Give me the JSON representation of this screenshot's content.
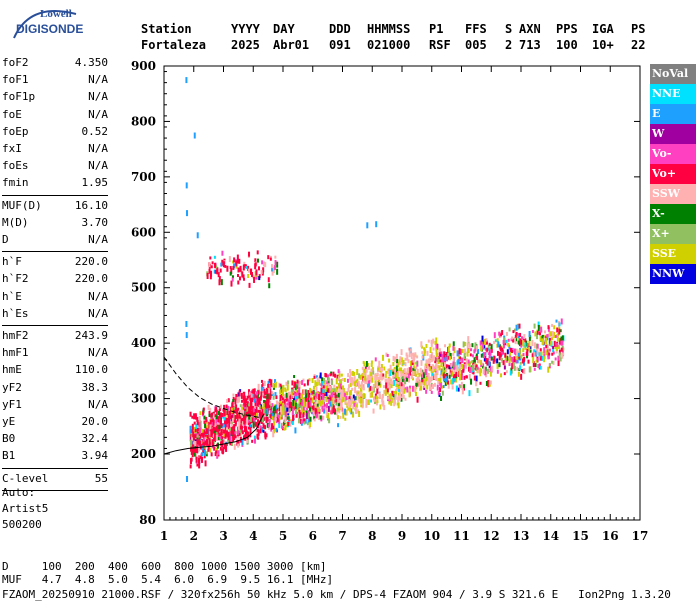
{
  "logo": {
    "line1": "Lowell",
    "line2": "DIGISONDE"
  },
  "header": {
    "labels": [
      "Station",
      "YYYY",
      "DAY",
      "DDD",
      "HHMMSS",
      "P1",
      "FFS",
      "S",
      "AXN",
      "PPS",
      "IGA",
      "PS"
    ],
    "values": [
      "Fortaleza",
      "2025",
      "Abr01",
      "091",
      "021000",
      "RSF",
      "005",
      "2",
      "713",
      "100",
      "10+",
      "22"
    ]
  },
  "params_groups": [
    [
      [
        "foF2",
        "4.350"
      ],
      [
        "foF1",
        "N/A"
      ],
      [
        "foF1p",
        "N/A"
      ],
      [
        "foE",
        "N/A"
      ],
      [
        "foEp",
        "0.52"
      ],
      [
        "fxI",
        "N/A"
      ],
      [
        "foEs",
        "N/A"
      ],
      [
        "fmin",
        "1.95"
      ]
    ],
    [
      [
        "MUF(D)",
        "16.10"
      ],
      [
        "M(D)",
        "3.70"
      ],
      [
        "D",
        "N/A"
      ]
    ],
    [
      [
        "h`F",
        "220.0"
      ],
      [
        "h`F2",
        "220.0"
      ],
      [
        "h`E",
        "N/A"
      ],
      [
        "h`Es",
        "N/A"
      ]
    ],
    [
      [
        "hmF2",
        "243.9"
      ],
      [
        "hmF1",
        "N/A"
      ],
      [
        "hmE",
        "110.0"
      ],
      [
        "yF2",
        "38.3"
      ],
      [
        "yF1",
        "N/A"
      ],
      [
        "yE",
        "20.0"
      ],
      [
        "B0",
        "32.4"
      ],
      [
        "B1",
        "3.94"
      ]
    ],
    [
      [
        "C-level",
        "55"
      ]
    ]
  ],
  "auto": {
    "line1": "Auto:",
    "line2": "Artist5",
    "line3": "500200"
  },
  "legend": [
    {
      "label": "NoVal",
      "color": "#808080"
    },
    {
      "label": "NNE",
      "color": "#00e0ff"
    },
    {
      "label": "E",
      "color": "#1ea0ff"
    },
    {
      "label": "W",
      "color": "#a000a0"
    },
    {
      "label": "Vo-",
      "color": "#ff40c0"
    },
    {
      "label": "Vo+",
      "color": "#ff0040"
    },
    {
      "label": "SSW",
      "color": "#ffb0b0"
    },
    {
      "label": "X-",
      "color": "#008000"
    },
    {
      "label": "X+",
      "color": "#90c060"
    },
    {
      "label": "SSE",
      "color": "#d0d000"
    },
    {
      "label": "NNW",
      "color": "#0000e0"
    }
  ],
  "footer": {
    "d_row": "D     100  200  400  600  800 1000 1500 3000 [km]",
    "muf_row": "MUF   4.7  4.8  5.0  5.4  6.0  6.9  9.5 16.1 [MHz]",
    "file_row": "FZAOM_20250910 21000.RSF / 320fx256h 50 kHz 5.0 km / DPS-4 FZAOM 904 / 3.9 S 321.6 E   Ion2Png 1.3.20"
  },
  "chart_data": {
    "type": "scatter",
    "xlim": [
      1,
      17
    ],
    "ylim": [
      80,
      900
    ],
    "x_ticks": [
      1,
      2,
      3,
      4,
      5,
      6,
      7,
      8,
      9,
      10,
      11,
      12,
      13,
      14,
      15,
      16,
      17
    ],
    "y_ticks": [
      80,
      200,
      300,
      400,
      500,
      600,
      700,
      800,
      900
    ],
    "grid": false,
    "legend_position": "right",
    "trace_clusters": [
      {
        "x0": 1.85,
        "x1": 4.6,
        "hbase": 225,
        "hslope": 25,
        "spread": 55,
        "density": 900
      },
      {
        "x0": 4.6,
        "x1": 6.8,
        "hbase": 285,
        "hslope": 12,
        "spread": 50,
        "density": 550
      },
      {
        "x0": 6.8,
        "x1": 10.2,
        "hbase": 305,
        "hslope": 18,
        "spread": 55,
        "density": 650
      },
      {
        "x0": 10.2,
        "x1": 12.0,
        "hbase": 350,
        "hslope": 15,
        "spread": 55,
        "density": 300
      },
      {
        "x0": 12.0,
        "x1": 14.4,
        "hbase": 380,
        "hslope": 12,
        "spread": 50,
        "density": 300
      },
      {
        "x0": 2.4,
        "x1": 4.8,
        "hbase": 540,
        "hslope": 0,
        "spread": 35,
        "density": 110
      }
    ],
    "profile_dashed": [
      [
        1.0,
        375
      ],
      [
        1.4,
        345
      ],
      [
        1.8,
        320
      ],
      [
        2.2,
        302
      ],
      [
        2.6,
        290
      ],
      [
        3.0,
        282
      ],
      [
        3.4,
        275
      ],
      [
        3.8,
        270
      ],
      [
        4.2,
        266
      ]
    ],
    "profile_solid": [
      [
        1.0,
        200
      ],
      [
        1.4,
        206
      ],
      [
        1.8,
        210
      ],
      [
        2.2,
        212
      ],
      [
        2.6,
        214
      ],
      [
        3.0,
        218
      ],
      [
        3.4,
        222
      ],
      [
        3.8,
        230
      ],
      [
        4.1,
        245
      ],
      [
        4.35,
        272
      ]
    ]
  }
}
